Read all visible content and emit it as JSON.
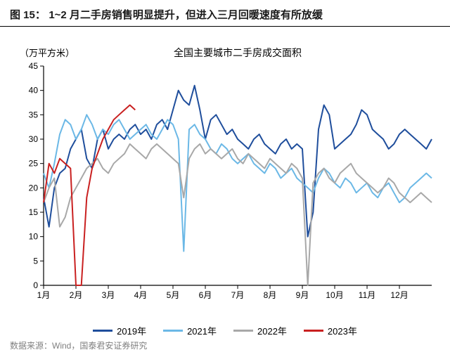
{
  "figure_label": "图 15：",
  "figure_title": "1~2 月二手房销售明显提升，但进入三月回暖速度有所放缓",
  "chart": {
    "type": "line",
    "title": "全国主要城市二手房成交面积",
    "ylabel": "（万平方米）",
    "title_fontsize": 14,
    "ylabel_fontsize": 13,
    "background_color": "#ffffff",
    "axis_color": "#000000",
    "tick_fontsize": 12,
    "ylim": [
      0,
      45
    ],
    "ytick_step": 5,
    "yticks": [
      0,
      5,
      10,
      15,
      20,
      25,
      30,
      35,
      40,
      45
    ],
    "x_categories": [
      "1月",
      "2月",
      "3月",
      "4月",
      "5月",
      "6月",
      "7月",
      "8月",
      "9月",
      "10月",
      "11月",
      "12月"
    ],
    "line_width": 2,
    "series": [
      {
        "name": "2019年",
        "color": "#1f4e9c",
        "data": [
          18,
          12,
          20,
          23,
          24,
          28,
          30,
          32,
          26,
          24,
          30,
          32,
          28,
          30,
          31,
          30,
          32,
          33,
          31,
          32,
          30,
          33,
          34,
          32,
          36,
          40,
          38,
          37,
          41,
          36,
          30,
          34,
          35,
          33,
          31,
          32,
          30,
          29,
          28,
          30,
          31,
          29,
          28,
          27,
          29,
          30,
          28,
          29,
          28,
          10,
          15,
          32,
          37,
          35,
          28,
          29,
          30,
          31,
          33,
          36,
          35,
          32,
          31,
          30,
          28,
          29,
          31,
          32,
          31,
          30,
          29,
          28,
          30
        ]
      },
      {
        "name": "2021年",
        "color": "#6bb8e6",
        "data": [
          23,
          20,
          25,
          31,
          34,
          33,
          30,
          32,
          35,
          33,
          30,
          32,
          31,
          33,
          34,
          32,
          30,
          31,
          32,
          33,
          31,
          30,
          32,
          34,
          33,
          30,
          7,
          32,
          33,
          31,
          30,
          28,
          27,
          29,
          28,
          26,
          25,
          26,
          27,
          25,
          24,
          23,
          25,
          24,
          22,
          23,
          24,
          22,
          21,
          20,
          19,
          22,
          24,
          23,
          21,
          20,
          22,
          21,
          19,
          20,
          21,
          19,
          18,
          20,
          21,
          19,
          17,
          18,
          20,
          21,
          22,
          23,
          22
        ]
      },
      {
        "name": "2022年",
        "color": "#a8a8a8",
        "data": [
          17,
          20,
          22,
          12,
          14,
          18,
          20,
          22,
          24,
          25,
          26,
          24,
          23,
          25,
          26,
          27,
          29,
          28,
          27,
          26,
          28,
          29,
          28,
          27,
          26,
          25,
          18,
          26,
          28,
          29,
          27,
          28,
          27,
          26,
          27,
          28,
          26,
          25,
          27,
          26,
          25,
          24,
          26,
          25,
          24,
          23,
          25,
          24,
          22,
          0,
          21,
          23,
          24,
          22,
          21,
          23,
          24,
          25,
          23,
          22,
          21,
          20,
          19,
          20,
          22,
          21,
          19,
          18,
          17,
          18,
          19,
          18,
          17
        ]
      },
      {
        "name": "2023年",
        "color": "#c92020",
        "data": [
          17,
          25,
          23,
          26,
          25,
          24,
          0,
          0,
          18,
          24,
          27,
          30,
          32,
          34,
          35,
          36,
          37,
          36
        ]
      }
    ],
    "legend_swatch_width": 28
  },
  "source": "数据来源：Wind，国泰君安证券研究"
}
